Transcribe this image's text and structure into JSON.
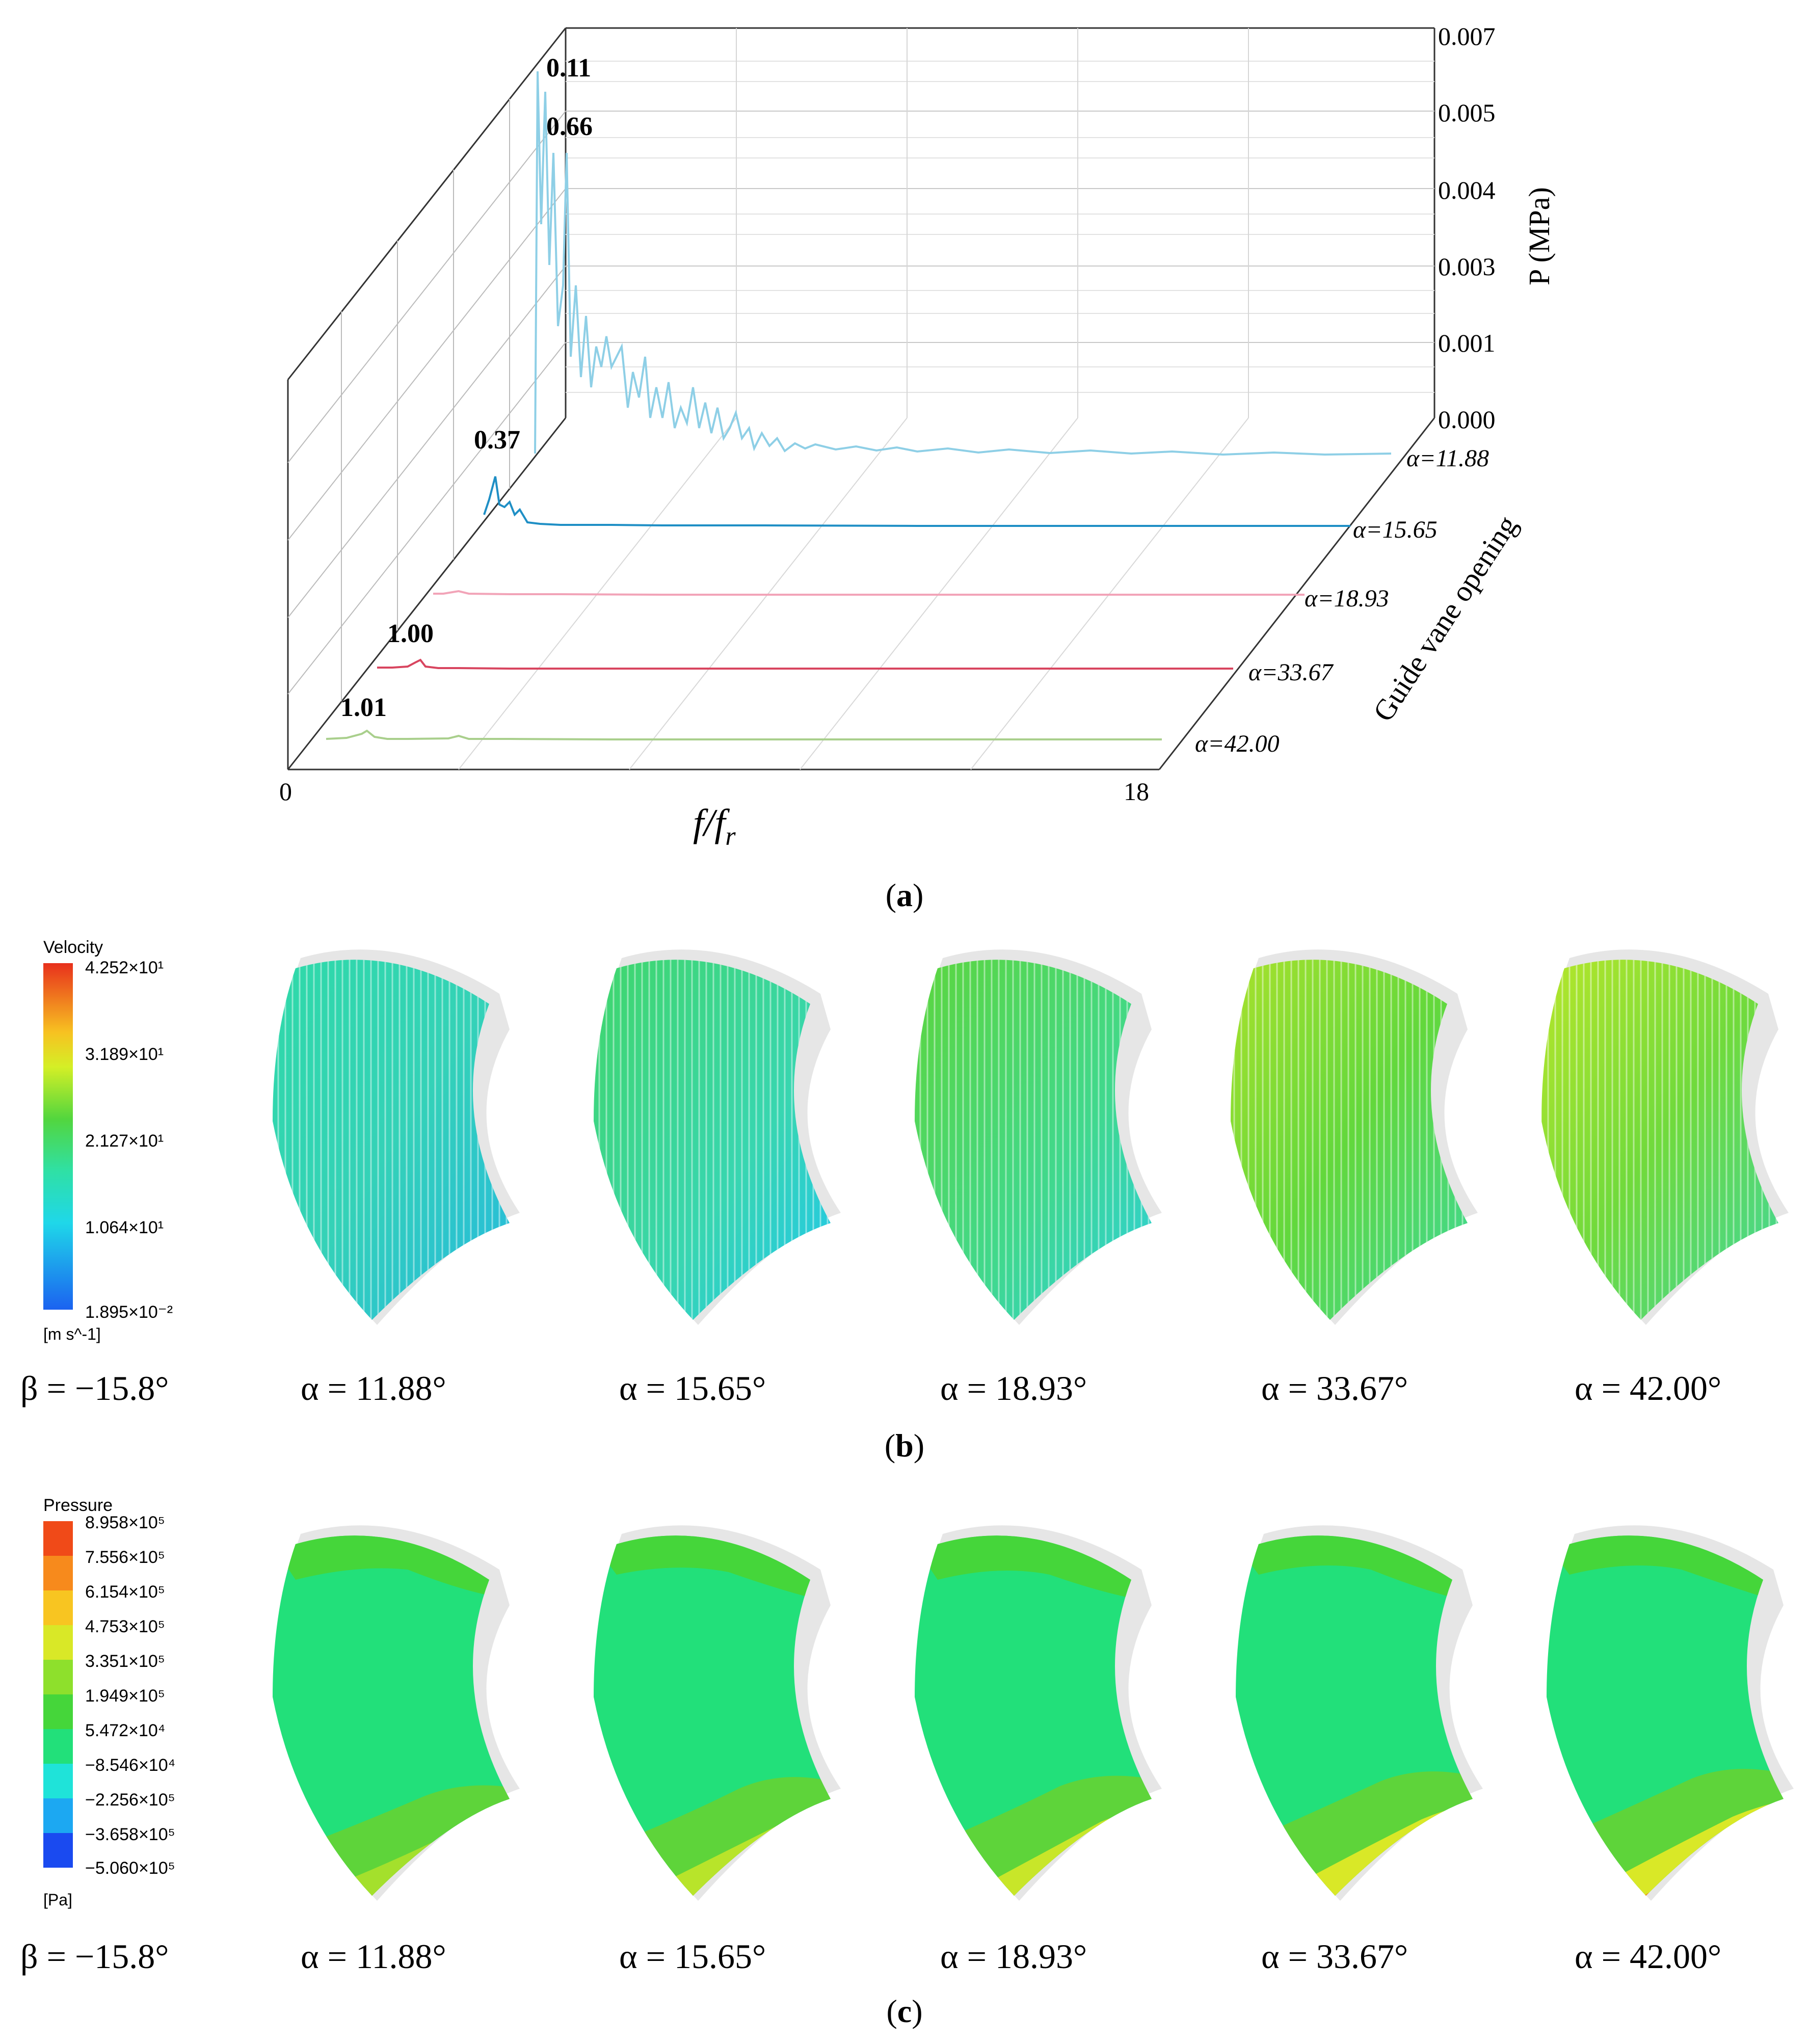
{
  "figure": {
    "panel_a": {
      "caption": "a",
      "y_axis_label": "P (MPa)",
      "y_ticks": [
        "0.000",
        "0.001",
        "0.003",
        "0.004",
        "0.005",
        "0.007"
      ],
      "x_axis_label_main": "f/f",
      "x_axis_label_sub": "r",
      "x_ticks": [
        "0",
        "18"
      ],
      "z_axis_label": "Guide vane opening",
      "series_labels": [
        "α=11.88",
        "α=15.65",
        "α=18.93",
        "α=33.67",
        "α=42.00"
      ],
      "peak_labels": [
        "0.11",
        "0.66",
        "0.37",
        "1.00",
        "1.01"
      ]
    },
    "panel_b": {
      "caption": "b",
      "legend_title": "Velocity",
      "legend_unit": "[m s^-1]",
      "legend_ticks": [
        "4.252×10¹",
        "3.189×10¹",
        "2.127×10¹",
        "1.064×10¹",
        "1.895×10⁻²"
      ],
      "labels": [
        "β = −15.8°",
        "α = 11.88°",
        "α = 15.65°",
        "α = 18.93°",
        "α = 33.67°",
        "α = 42.00°"
      ]
    },
    "panel_c": {
      "caption": "c",
      "legend_title": "Pressure",
      "legend_unit": "[Pa]",
      "legend_ticks": [
        "8.958×10⁵",
        "7.556×10⁵",
        "6.154×10⁵",
        "4.753×10⁵",
        "3.351×10⁵",
        "1.949×10⁵",
        "5.472×10⁴",
        "−8.546×10⁴",
        "−2.256×10⁵",
        "−3.658×10⁵",
        "−5.060×10⁵"
      ],
      "labels": [
        "β = −15.8°",
        "α = 11.88°",
        "α = 15.65°",
        "α = 18.93°",
        "α = 33.67°",
        "α = 42.00°"
      ]
    },
    "colors": {
      "series_11_88": "#8ecfe6",
      "series_15_65": "#1f8fc5",
      "series_18_93": "#f2a4b8",
      "series_33_67": "#d8455f",
      "series_42_00": "#a9cf8c",
      "velocity_main": "#3fd6a8",
      "pressure_main": "#22e07a"
    }
  }
}
